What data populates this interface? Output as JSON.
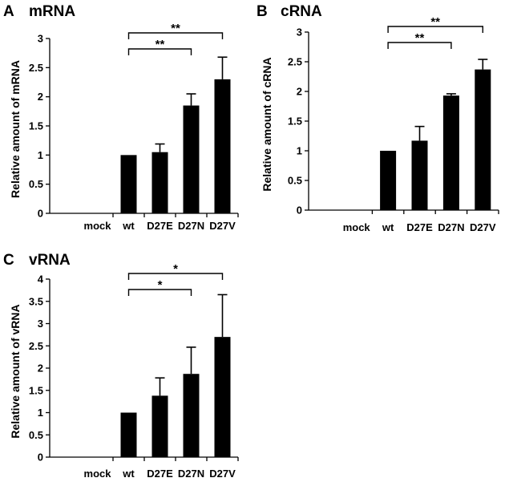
{
  "chart_data": [
    {
      "type": "bar",
      "panel": "A",
      "title": "mRNA",
      "ylabel": "Relative amount of mRNA",
      "xlabel": "",
      "categories": [
        "mock",
        "wt",
        "D27E",
        "D27N",
        "D27V"
      ],
      "values": [
        0,
        1.0,
        1.05,
        1.85,
        2.3
      ],
      "errors": [
        0,
        0,
        0.14,
        0.2,
        0.38
      ],
      "ylim": [
        0,
        3
      ],
      "yticks": [
        "0",
        "0.5",
        "1",
        "1.5",
        "2",
        "2.5",
        "3"
      ],
      "grid": false,
      "significance": [
        {
          "from": "wt",
          "to": "D27V",
          "label": "**"
        },
        {
          "from": "wt",
          "to": "D27N",
          "label": "**"
        }
      ]
    },
    {
      "type": "bar",
      "panel": "B",
      "title": "cRNA",
      "ylabel": "Relative amount of cRNA",
      "xlabel": "",
      "categories": [
        "mock",
        "wt",
        "D27E",
        "D27N",
        "D27V"
      ],
      "values": [
        0,
        1.0,
        1.17,
        1.93,
        2.37
      ],
      "errors": [
        0,
        0,
        0.24,
        0.03,
        0.17
      ],
      "ylim": [
        0,
        3
      ],
      "yticks": [
        "0",
        "0.5",
        "1",
        "1.5",
        "2",
        "2.5",
        "3"
      ],
      "grid": false,
      "significance": [
        {
          "from": "wt",
          "to": "D27V",
          "label": "**"
        },
        {
          "from": "wt",
          "to": "D27N",
          "label": "**"
        }
      ]
    },
    {
      "type": "bar",
      "panel": "C",
      "title": "vRNA",
      "ylabel": "Relative amount of vRNA",
      "xlabel": "",
      "categories": [
        "mock",
        "wt",
        "D27E",
        "D27N",
        "D27V"
      ],
      "values": [
        0,
        1.0,
        1.38,
        1.87,
        2.7
      ],
      "errors": [
        0,
        0,
        0.4,
        0.6,
        0.95
      ],
      "ylim": [
        0,
        4
      ],
      "yticks": [
        "0",
        "0.5",
        "1",
        "1.5",
        "2",
        "2.5",
        "3",
        "3.5",
        "4"
      ],
      "grid": false,
      "significance": [
        {
          "from": "wt",
          "to": "D27V",
          "label": "*"
        },
        {
          "from": "wt",
          "to": "D27N",
          "label": "*"
        }
      ]
    }
  ]
}
